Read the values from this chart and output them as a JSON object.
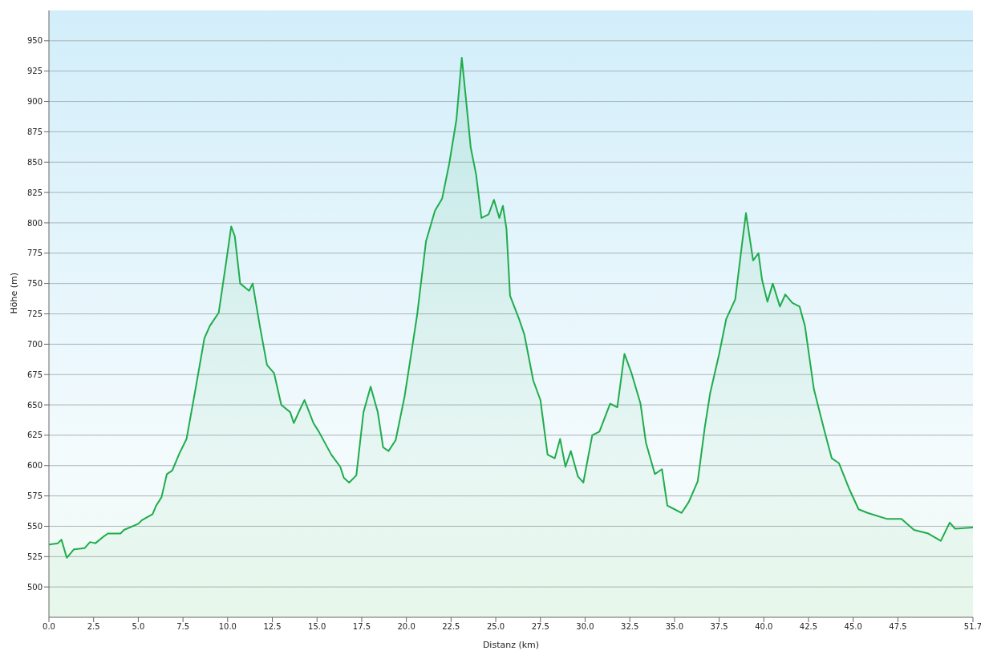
{
  "chart_data": {
    "type": "area",
    "xlabel": "Distanz  (km)",
    "ylabel": "Höhe (m)",
    "x": [
      0,
      0.5,
      0.7,
      1.0,
      1.4,
      2.0,
      2.3,
      2.6,
      3.1,
      3.3,
      4.0,
      4.2,
      5.0,
      5.2,
      5.8,
      6.0,
      6.3,
      6.6,
      6.9,
      7.3,
      7.7,
      8.2,
      8.7,
      9.0,
      9.5,
      9.9,
      10.2,
      10.4,
      10.7,
      11.2,
      11.4,
      11.8,
      12.2,
      12.6,
      13.0,
      13.5,
      13.7,
      14.1,
      14.3,
      14.8,
      15.1,
      15.8,
      16.3,
      16.5,
      16.8,
      17.2,
      17.6,
      18.0,
      18.4,
      18.7,
      19.0,
      19.4,
      19.9,
      20.3,
      20.6,
      21.1,
      21.6,
      22.0,
      22.4,
      22.8,
      23.1,
      23.3,
      23.6,
      23.9,
      24.2,
      24.6,
      24.9,
      25.2,
      25.4,
      25.6,
      25.8,
      26.3,
      26.6,
      27.1,
      27.5,
      27.9,
      28.3,
      28.6,
      28.9,
      29.2,
      29.6,
      29.9,
      30.4,
      30.8,
      31.4,
      31.8,
      32.2,
      32.6,
      33.1,
      33.4,
      33.9,
      34.3,
      34.6,
      35.0,
      35.4,
      35.8,
      36.3,
      36.7,
      37.0,
      37.5,
      37.9,
      38.4,
      38.8,
      39.0,
      39.4,
      39.7,
      39.9,
      40.2,
      40.5,
      40.9,
      41.2,
      41.6,
      42.0,
      42.3,
      42.8,
      43.4,
      43.8,
      44.2,
      44.8,
      45.3,
      45.8,
      46.9,
      47.7,
      48.4,
      49.2,
      49.9,
      50.4,
      50.7,
      51.7
    ],
    "series": [
      {
        "color": "#1fac4c",
        "values": [
          535,
          536,
          539,
          524,
          531,
          532,
          537,
          536,
          542,
          544,
          544,
          547,
          552,
          555,
          560,
          567,
          574,
          593,
          596,
          610,
          622,
          663,
          705,
          715,
          726,
          766,
          797,
          789,
          750,
          744,
          750,
          715,
          683,
          676,
          650,
          644,
          635,
          648,
          654,
          635,
          628,
          609,
          599,
          590,
          586,
          592,
          644,
          665,
          644,
          615,
          612,
          621,
          657,
          695,
          724,
          785,
          810,
          820,
          849,
          885,
          936,
          907,
          862,
          840,
          804,
          807,
          819,
          804,
          814,
          795,
          740,
          721,
          708,
          670,
          654,
          609,
          606,
          622,
          599,
          612,
          591,
          586,
          625,
          628,
          651,
          648,
          692,
          676,
          651,
          619,
          593,
          597,
          567,
          564,
          561,
          570,
          587,
          632,
          660,
          692,
          721,
          737,
          785,
          808,
          769,
          775,
          753,
          735,
          750,
          731,
          741,
          734,
          731,
          715,
          663,
          628,
          606,
          602,
          580,
          564,
          561,
          556,
          556,
          547,
          544,
          538,
          553,
          548,
          549
        ]
      }
    ],
    "xlim": [
      0,
      51.7
    ],
    "xticks": [
      {
        "value": 0,
        "label": "0.0"
      },
      2.5,
      {
        "value": 5,
        "label": "5.0"
      },
      7.5,
      {
        "value": 10,
        "label": "10.0"
      },
      12.5,
      {
        "value": 15,
        "label": "15.0"
      },
      17.5,
      {
        "value": 20,
        "label": "20.0"
      },
      22.5,
      {
        "value": 25,
        "label": "25.0"
      },
      27.5,
      {
        "value": 30,
        "label": "30.0"
      },
      32.5,
      {
        "value": 35,
        "label": "35.0"
      },
      37.5,
      {
        "value": 40,
        "label": "40.0"
      },
      42.5,
      {
        "value": 45,
        "label": "45.0"
      },
      47.5,
      51.7
    ],
    "ylim": [
      475,
      975
    ],
    "yticks": [
      500,
      525,
      550,
      575,
      600,
      625,
      650,
      675,
      700,
      725,
      750,
      775,
      800,
      825,
      850,
      875,
      900,
      925,
      950
    ],
    "grid": "y",
    "legend": false
  }
}
